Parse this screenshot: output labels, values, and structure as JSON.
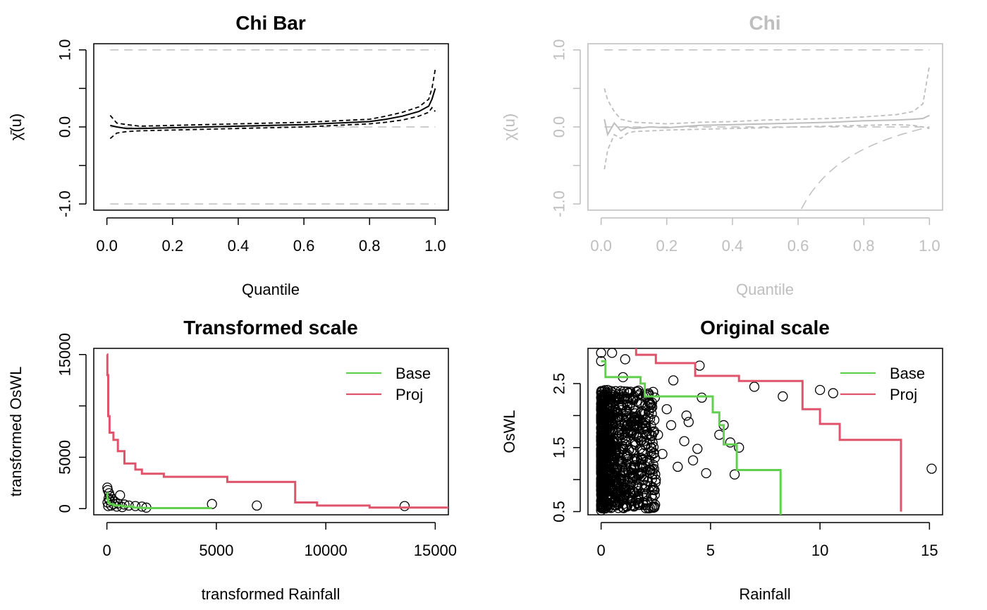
{
  "colors": {
    "ink": "#000000",
    "muted": "#bebebe",
    "base": "#61D04F",
    "proj": "#DF536B"
  },
  "chart_data": [
    {
      "type": "line",
      "title": "Chi Bar",
      "xlabel": "Quantile",
      "ylabel": "χ̄(u)",
      "xlim": [
        0,
        1
      ],
      "ylim": [
        -1,
        1
      ],
      "xticks": [
        "0.0",
        "0.2",
        "0.4",
        "0.6",
        "0.8",
        "1.0"
      ],
      "yticks": [
        "-1.0",
        "0.0",
        "1.0"
      ],
      "reference_lines": [
        1,
        0,
        -1
      ],
      "series": [
        {
          "x": [
            0.01,
            0.03,
            0.06,
            0.1,
            0.2,
            0.3,
            0.4,
            0.5,
            0.6,
            0.7,
            0.8,
            0.85,
            0.9,
            0.95,
            0.98,
            0.99,
            1.0
          ],
          "y": [
            0.02,
            0.0,
            -0.02,
            -0.02,
            -0.01,
            0.0,
            0.01,
            0.02,
            0.03,
            0.05,
            0.07,
            0.1,
            0.14,
            0.2,
            0.27,
            0.36,
            0.5
          ],
          "y_lower": [
            -0.15,
            -0.08,
            -0.06,
            -0.05,
            -0.04,
            -0.03,
            -0.02,
            -0.01,
            0.0,
            0.02,
            0.04,
            0.06,
            0.09,
            0.14,
            0.19,
            0.25,
            0.2
          ],
          "y_upper": [
            0.15,
            0.05,
            0.03,
            0.01,
            0.02,
            0.03,
            0.04,
            0.05,
            0.06,
            0.08,
            0.1,
            0.14,
            0.19,
            0.26,
            0.36,
            0.5,
            0.75
          ]
        }
      ]
    },
    {
      "type": "line",
      "title": "Chi",
      "xlabel": "Quantile",
      "ylabel": "χ(u)",
      "xlim": [
        0,
        1
      ],
      "ylim": [
        -1,
        1
      ],
      "xticks": [
        "0.0",
        "0.2",
        "0.4",
        "0.6",
        "0.8",
        "1.0"
      ],
      "yticks": [
        "-1.0",
        "0.0",
        "1.0"
      ],
      "reference_lines": [
        1,
        0
      ],
      "series": [
        {
          "x": [
            0.01,
            0.02,
            0.04,
            0.06,
            0.08,
            0.1,
            0.15,
            0.2,
            0.3,
            0.4,
            0.5,
            0.6,
            0.7,
            0.8,
            0.9,
            0.95,
            0.98,
            1.0
          ],
          "y": [
            0.1,
            -0.1,
            0.05,
            -0.05,
            0.0,
            -0.02,
            0.0,
            -0.01,
            0.02,
            0.03,
            0.04,
            0.05,
            0.06,
            0.08,
            0.09,
            0.1,
            0.11,
            0.15
          ],
          "y_lower": [
            -0.55,
            -0.3,
            -0.1,
            -0.15,
            -0.08,
            -0.06,
            -0.05,
            -0.04,
            -0.03,
            -0.02,
            -0.01,
            0.0,
            0.01,
            0.02,
            0.03,
            0.02,
            0.0,
            -0.02
          ],
          "y_upper": [
            0.5,
            0.35,
            0.2,
            0.1,
            0.08,
            0.06,
            0.05,
            0.04,
            0.06,
            0.07,
            0.09,
            0.1,
            0.11,
            0.13,
            0.16,
            0.2,
            0.3,
            0.8
          ]
        }
      ],
      "lower_bound_curve": "2 - log(1 - 2u + u^2 ... ) style bound rising from -1 at u≈0.6 to 0 at u=1"
    },
    {
      "type": "scatter",
      "title": "Transformed scale",
      "xlabel": "transformed Rainfall",
      "ylabel": "transformed OsWL",
      "xlim": [
        -600,
        15600
      ],
      "ylim": [
        -600,
        15600
      ],
      "xticks": [
        "0",
        "5000",
        "10000",
        "15000"
      ],
      "yticks": [
        "0",
        "5000",
        "15000"
      ],
      "legend": {
        "position": "top-right",
        "entries": [
          "Base",
          "Proj"
        ]
      },
      "points": [
        [
          4800,
          450
        ],
        [
          6850,
          300
        ],
        [
          13600,
          250
        ],
        [
          600,
          1300
        ],
        [
          20,
          2050
        ],
        [
          40,
          1800
        ],
        [
          100,
          1500
        ],
        [
          150,
          1200
        ],
        [
          250,
          900
        ],
        [
          350,
          700
        ],
        [
          500,
          500
        ],
        [
          800,
          400
        ],
        [
          1000,
          300
        ],
        [
          1300,
          250
        ],
        [
          1600,
          200
        ],
        [
          1800,
          100
        ],
        [
          30,
          600
        ],
        [
          200,
          300
        ],
        [
          450,
          200
        ],
        [
          700,
          150
        ],
        [
          80,
          1000
        ],
        [
          120,
          800
        ],
        [
          300,
          450
        ],
        [
          60,
          250
        ]
      ],
      "series": [
        {
          "name": "Base",
          "x": [
            0,
            20,
            20,
            60,
            60,
            120,
            120,
            300,
            300,
            700,
            700,
            1200,
            1200,
            2000,
            4800
          ],
          "y": [
            1500,
            1500,
            900,
            900,
            600,
            600,
            450,
            450,
            300,
            300,
            200,
            200,
            100,
            50,
            50
          ]
        },
        {
          "name": "Proj",
          "x": [
            0,
            20,
            20,
            60,
            60,
            120,
            120,
            300,
            300,
            500,
            500,
            800,
            800,
            1300,
            1300,
            1600,
            1600,
            2600,
            2600,
            5500,
            5500,
            8600,
            8600,
            9600,
            9600,
            12000,
            12000,
            15600
          ],
          "y": [
            15000,
            15000,
            13000,
            13000,
            9000,
            9000,
            7400,
            7400,
            6700,
            6700,
            5600,
            5600,
            4400,
            4400,
            3800,
            3800,
            3400,
            3400,
            3100,
            3100,
            2600,
            2600,
            600,
            600,
            300,
            300,
            100,
            100
          ]
        }
      ]
    },
    {
      "type": "scatter",
      "title": "Original scale",
      "xlabel": "Rainfall",
      "ylabel": "OsWL",
      "xlim": [
        -0.6,
        15.6
      ],
      "ylim": [
        0.45,
        3.05
      ],
      "xticks": [
        "0",
        "5",
        "10",
        "15"
      ],
      "yticks": [
        "0.5",
        "1.5",
        "2.5"
      ],
      "legend": {
        "position": "top-right",
        "entries": [
          "Base",
          "Proj"
        ]
      },
      "points": [
        [
          0.0,
          2.98
        ],
        [
          0.5,
          2.98
        ],
        [
          1.1,
          2.88
        ],
        [
          0.0,
          2.85
        ],
        [
          4.5,
          2.78
        ],
        [
          3.3,
          2.55
        ],
        [
          10.0,
          2.4
        ],
        [
          10.6,
          2.35
        ],
        [
          8.3,
          2.3
        ],
        [
          7.0,
          2.45
        ],
        [
          15.1,
          1.17
        ],
        [
          6.1,
          1.08
        ],
        [
          5.4,
          1.7
        ],
        [
          5.6,
          1.85
        ],
        [
          5.9,
          1.58
        ],
        [
          6.3,
          1.5
        ],
        [
          4.4,
          1.48
        ],
        [
          4.2,
          1.3
        ],
        [
          3.8,
          1.6
        ],
        [
          3.5,
          1.2
        ],
        [
          4.0,
          1.9
        ],
        [
          4.6,
          2.28
        ],
        [
          3.0,
          2.1
        ],
        [
          2.5,
          1.0
        ],
        [
          2.0,
          0.85
        ],
        [
          1.7,
          0.75
        ],
        [
          1.2,
          0.7
        ],
        [
          0.6,
          0.6
        ],
        [
          0.0,
          0.52
        ],
        [
          0.2,
          0.55
        ],
        [
          3.2,
          1.85
        ],
        [
          2.8,
          1.4
        ],
        [
          1.5,
          2.3
        ],
        [
          1.0,
          2.6
        ],
        [
          0.3,
          2.4
        ],
        [
          2.2,
          2.2
        ],
        [
          4.8,
          1.1
        ],
        [
          3.9,
          2.0
        ],
        [
          1.8,
          1.1
        ],
        [
          2.6,
          1.7
        ]
      ],
      "dense_cloud": {
        "x_range": [
          0,
          2.5
        ],
        "y_range": [
          0.55,
          2.4
        ]
      },
      "series": [
        {
          "name": "Base",
          "x": [
            0.0,
            0.2,
            0.2,
            1.8,
            1.8,
            2.0,
            2.0,
            5.1,
            5.1,
            5.4,
            5.4,
            5.6,
            5.6,
            6.2,
            6.2,
            8.2,
            8.2
          ],
          "y": [
            2.85,
            2.85,
            2.6,
            2.6,
            2.5,
            2.5,
            2.3,
            2.3,
            2.05,
            2.05,
            1.85,
            1.85,
            1.55,
            1.55,
            1.15,
            1.15,
            0.45
          ],
          "continuous_points": [
            [
              0.0,
              2.8
            ],
            [
              0.05,
              2.7
            ],
            [
              0.2,
              2.6
            ],
            [
              0.6,
              2.55
            ],
            [
              1.2,
              2.53
            ],
            [
              1.8,
              2.5
            ],
            [
              3.0,
              2.35
            ],
            [
              4.0,
              2.3
            ],
            [
              5.1,
              2.3
            ]
          ]
        },
        {
          "name": "Proj",
          "x": [
            1.6,
            1.6,
            2.5,
            2.5,
            4.3,
            4.3,
            6.3,
            6.3,
            9.2,
            9.2,
            10.0,
            10.0,
            10.9,
            10.9,
            13.7,
            13.7
          ],
          "y": [
            3.05,
            2.95,
            2.95,
            2.82,
            2.82,
            2.62,
            2.62,
            2.54,
            2.54,
            2.1,
            2.1,
            1.87,
            1.87,
            1.62,
            1.62,
            0.5
          ]
        }
      ]
    }
  ]
}
